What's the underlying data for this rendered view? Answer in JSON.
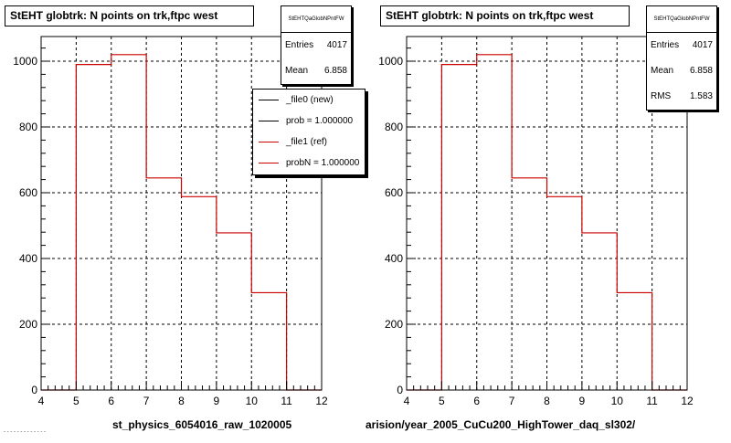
{
  "chart_data": [
    {
      "type": "histogram",
      "title": "StEHT globtrk: N points on trk,ftpc west",
      "bin_edges": [
        4,
        5,
        6,
        7,
        8,
        9,
        10,
        11,
        12
      ],
      "values": [
        0,
        990,
        1020,
        645,
        588,
        478,
        296,
        0
      ],
      "xlim": [
        4,
        12
      ],
      "ylim": [
        0,
        1075
      ],
      "x_ticks": [
        4,
        5,
        6,
        7,
        8,
        9,
        10,
        11,
        12
      ],
      "y_ticks": [
        0,
        200,
        400,
        600,
        800,
        1000
      ],
      "grid": true,
      "line_color": "#cc0000",
      "stats": {
        "title": "StEHTQaGlobNPntFW",
        "rows": [
          {
            "label": "Entries",
            "value": "4017"
          },
          {
            "label": "Mean",
            "value": "6.858"
          }
        ]
      },
      "legend": {
        "placement": "top-right",
        "entries": [
          {
            "label": "_file0 (new)",
            "color": "#000000"
          },
          {
            "label": "prob = 1.000000",
            "color": "#000000"
          },
          {
            "label": "_file1 (ref)",
            "color": "#cc0000"
          },
          {
            "label": "probN = 1.000000",
            "color": "#cc0000"
          }
        ]
      },
      "filename": "st_physics_6054016_raw_1020005"
    },
    {
      "type": "histogram",
      "title": "StEHT globtrk: N points on trk,ftpc west",
      "bin_edges": [
        4,
        5,
        6,
        7,
        8,
        9,
        10,
        11,
        12
      ],
      "values": [
        0,
        990,
        1020,
        645,
        588,
        478,
        296,
        0
      ],
      "xlim": [
        4,
        12
      ],
      "ylim": [
        0,
        1075
      ],
      "x_ticks": [
        4,
        5,
        6,
        7,
        8,
        9,
        10,
        11,
        12
      ],
      "y_ticks": [
        0,
        200,
        400,
        600,
        800,
        1000
      ],
      "grid": true,
      "line_color": "#cc0000",
      "stats": {
        "title": "StEHTQaGlobNPntFW",
        "rows": [
          {
            "label": "Entries",
            "value": "4017"
          },
          {
            "label": "Mean",
            "value": "6.858"
          },
          {
            "label": "RMS",
            "value": "1.583"
          }
        ]
      },
      "filename": "arision/year_2005_CuCu200_HighTower_daq_sl302/"
    }
  ],
  "corner_note": "- - - - - - - - - - - - -"
}
